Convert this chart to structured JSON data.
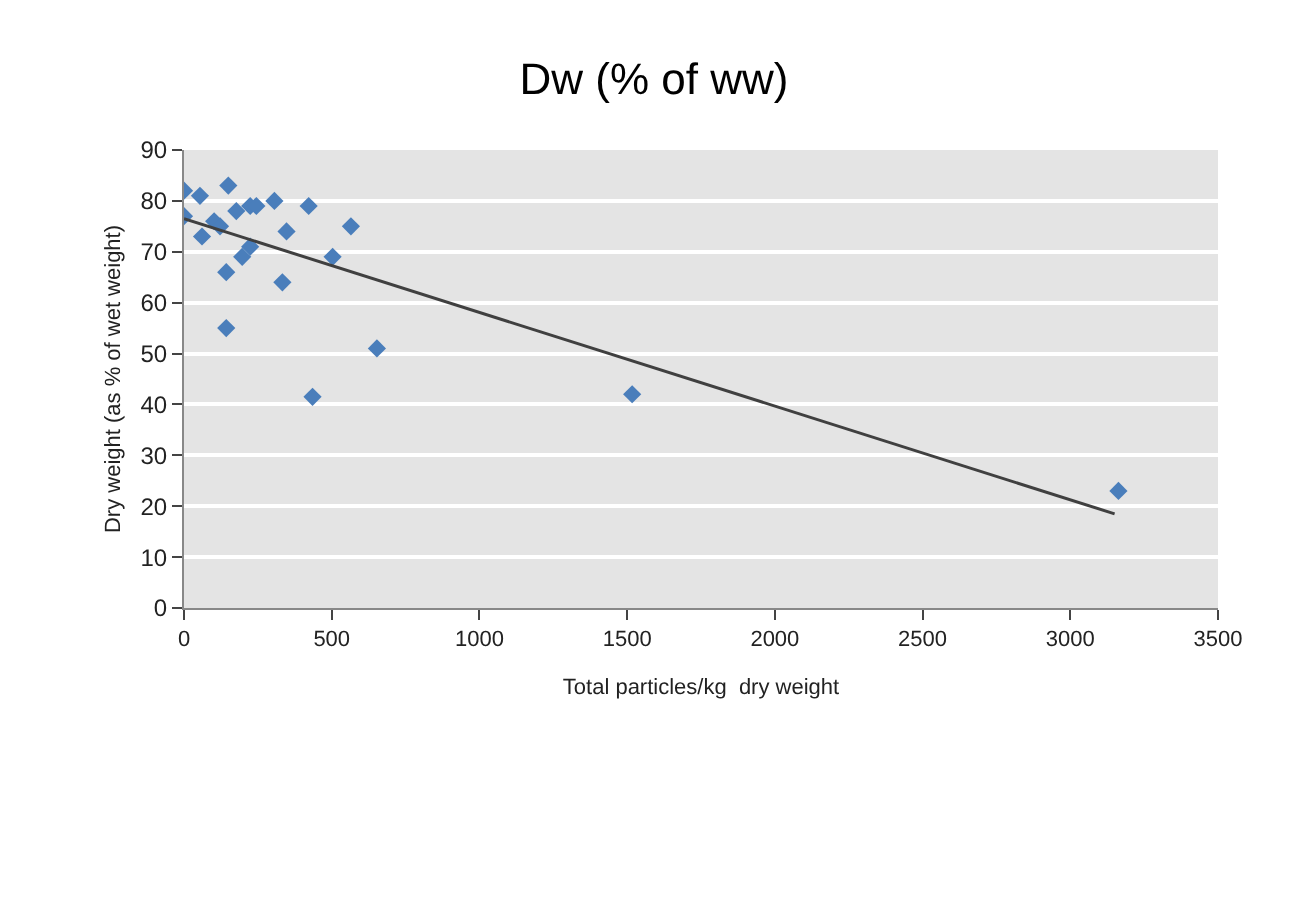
{
  "chart_data": {
    "type": "scatter",
    "title": "Dw (% of ww)",
    "xlabel": "Total particles/kg  dry weight",
    "ylabel": "Dry weight (as % of wet weight)",
    "xlim": [
      0,
      3500
    ],
    "xticks": [
      0,
      500,
      1000,
      1500,
      2000,
      2500,
      3000,
      3500
    ],
    "ylim": [
      0,
      90
    ],
    "yticks": [
      0,
      10,
      20,
      30,
      40,
      50,
      60,
      70,
      80,
      90
    ],
    "grid": "y",
    "legend": false,
    "series": [
      {
        "color": "#4a7ebb",
        "marker": "diamond",
        "x": [
          0,
          0,
          54,
          61,
          102,
          122,
          150,
          143,
          143,
          177,
          197,
          224,
          224,
          245,
          306,
          347,
          333,
          422,
          435,
          503,
          565,
          653,
          1517,
          3163
        ],
        "values": [
          82,
          77,
          81,
          73,
          76,
          75,
          83,
          66,
          55,
          78,
          69,
          71,
          79,
          79,
          80,
          74,
          64,
          79,
          41.5,
          69,
          75,
          51,
          42,
          23
        ]
      },
      {
        "type": "line",
        "color": "#404040",
        "marker": "none",
        "x": [
          0,
          3150
        ],
        "values": [
          76.5,
          18.5
        ]
      }
    ]
  }
}
